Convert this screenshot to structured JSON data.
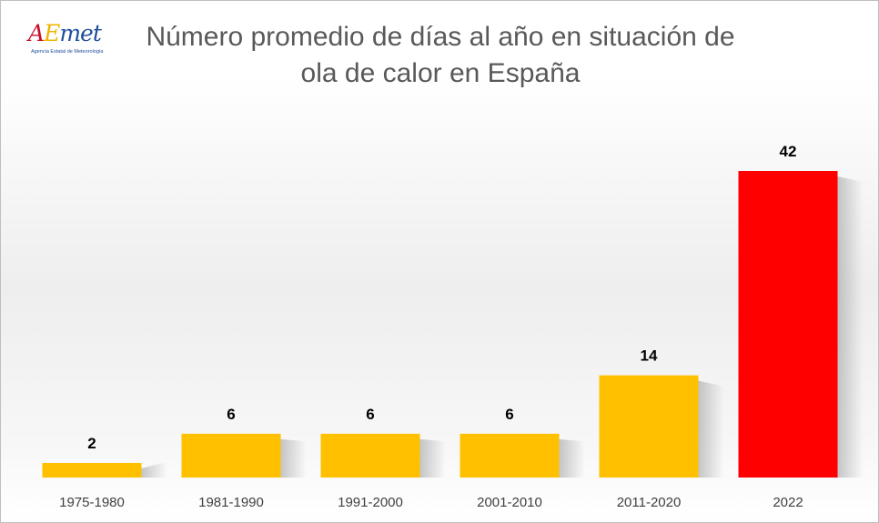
{
  "logo": {
    "text_a": "A",
    "text_e": "E",
    "text_rest": "met",
    "subtitle": "Agencia Estatal de Meteorología"
  },
  "chart_data": {
    "type": "bar",
    "title": "Número promedio de días al año en situación de ola de calor en España",
    "title_lines": [
      "Número promedio de días al año en situación de",
      "ola de calor en España"
    ],
    "categories": [
      "1975-1980",
      "1981-1990",
      "1991-2000",
      "2001-2010",
      "2011-2020",
      "2022"
    ],
    "values": [
      2,
      6,
      6,
      6,
      14,
      42
    ],
    "data_labels": [
      "2",
      "6",
      "6",
      "6",
      "14",
      "42"
    ],
    "colors": [
      "#FFC000",
      "#FFC000",
      "#FFC000",
      "#FFC000",
      "#FFC000",
      "#FF0000"
    ],
    "ylim": [
      0,
      42
    ],
    "grid": false,
    "legend": "none",
    "xlabel": "",
    "ylabel": ""
  }
}
